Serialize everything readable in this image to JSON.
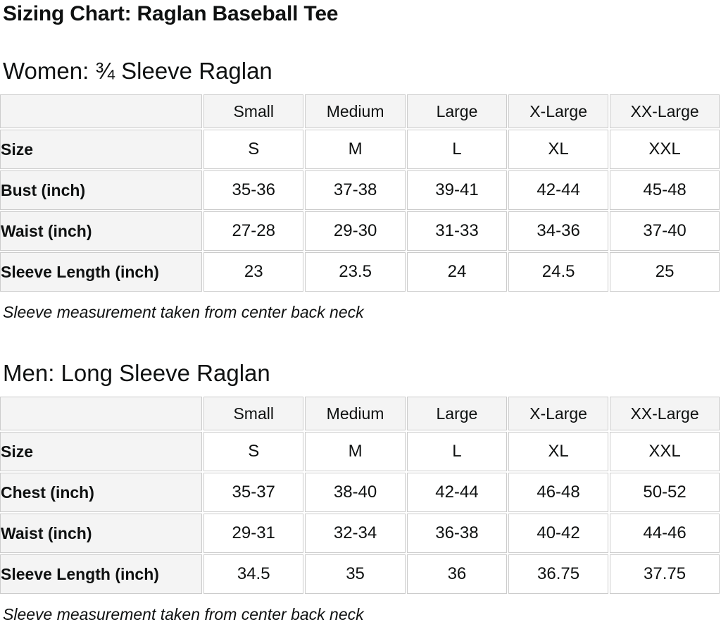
{
  "page": {
    "title": "Sizing Chart: Raglan Baseball Tee"
  },
  "colors": {
    "text": "#0f1111",
    "table_border": "#cccccc",
    "header_cell_bg": "#f4f4f4",
    "data_cell_bg": "#ffffff",
    "page_bg": "#ffffff"
  },
  "tables": [
    {
      "heading": "Women: ¾ Sleeve Raglan",
      "columns": [
        "",
        "Small",
        "Medium",
        "Large",
        "X-Large",
        "XX-Large"
      ],
      "rows": [
        {
          "label": "Size",
          "values": [
            "S",
            "M",
            "L",
            "XL",
            "XXL"
          ]
        },
        {
          "label": "Bust (inch)",
          "values": [
            "35-36",
            "37-38",
            "39-41",
            "42-44",
            "45-48"
          ]
        },
        {
          "label": "Waist (inch)",
          "values": [
            "27-28",
            "29-30",
            "31-33",
            "34-36",
            "37-40"
          ]
        },
        {
          "label": "Sleeve Length (inch)",
          "values": [
            "23",
            "23.5",
            "24",
            "24.5",
            "25"
          ]
        }
      ],
      "footnote": "Sleeve measurement taken from center back neck"
    },
    {
      "heading": "Men: Long Sleeve Raglan",
      "columns": [
        "",
        "Small",
        "Medium",
        "Large",
        "X-Large",
        "XX-Large"
      ],
      "rows": [
        {
          "label": "Size",
          "values": [
            "S",
            "M",
            "L",
            "XL",
            "XXL"
          ]
        },
        {
          "label": "Chest (inch)",
          "values": [
            "35-37",
            "38-40",
            "42-44",
            "46-48",
            "50-52"
          ]
        },
        {
          "label": "Waist (inch)",
          "values": [
            "29-31",
            "32-34",
            "36-38",
            "40-42",
            "44-46"
          ]
        },
        {
          "label": "Sleeve Length (inch)",
          "values": [
            "34.5",
            "35",
            "36",
            "36.75",
            "37.75"
          ]
        }
      ],
      "footnote": "Sleeve measurement taken from center back neck"
    }
  ]
}
